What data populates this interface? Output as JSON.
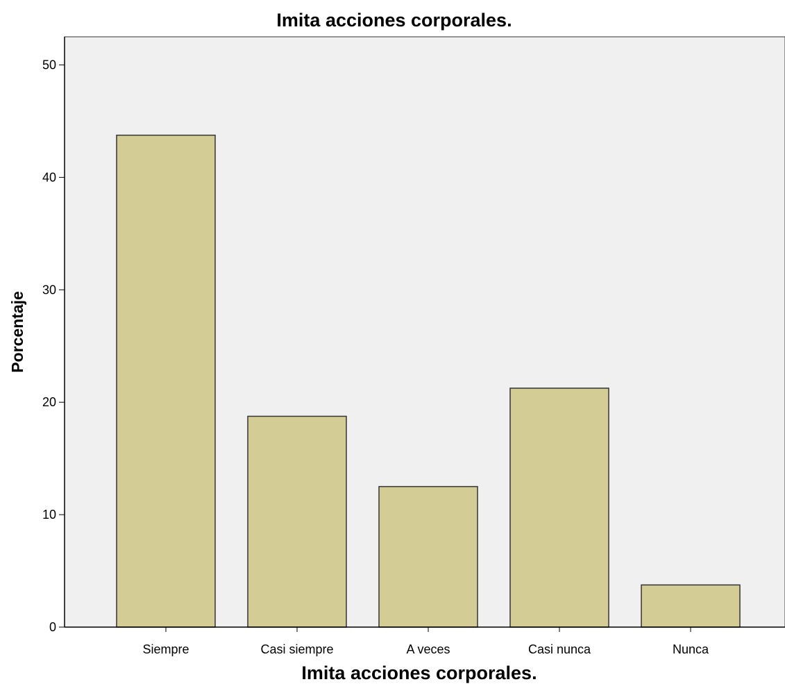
{
  "chart_data": {
    "type": "bar",
    "title": "Imita acciones corporales.",
    "xlabel": "Imita acciones corporales.",
    "ylabel": "Porcentaje",
    "categories": [
      "Siempre",
      "Casi siempre",
      "A veces",
      "Casi nunca",
      "Nunca"
    ],
    "values": [
      43.75,
      18.75,
      12.5,
      21.25,
      3.75
    ],
    "ylim": [
      0,
      52.5
    ],
    "yticks": [
      0,
      10,
      20,
      30,
      40,
      50
    ],
    "grid": false,
    "legend": "none",
    "colors": {
      "bar_fill": "#d3cd95",
      "bar_stroke": "#333333",
      "plot_background": "#f0f0f0",
      "axis": "#000000"
    }
  }
}
